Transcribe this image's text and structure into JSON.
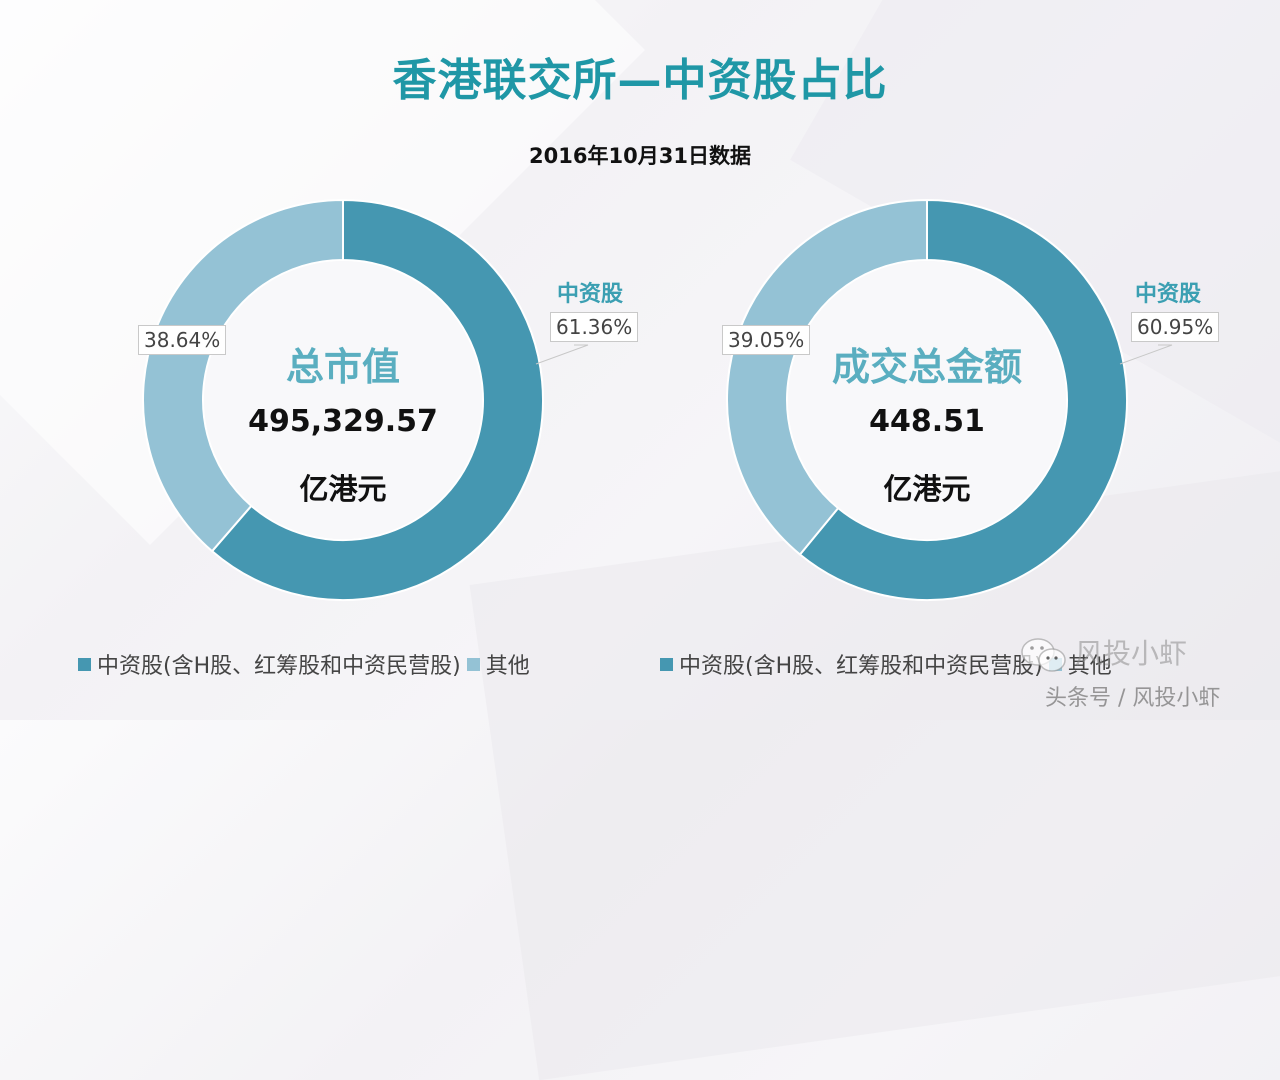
{
  "title": "香港联交所—中资股占比",
  "subtitle": "2016年10月31日数据",
  "colors": {
    "title": "#1f97a6",
    "primary_segment": "#4597b1",
    "secondary_segment": "#94c2d5",
    "center_title": "#5aaec0"
  },
  "charts": [
    {
      "center_title": "总市值",
      "center_value": "495,329.57",
      "center_unit": "亿港元",
      "category_label": "中资股",
      "primary_pct_label": "61.36%",
      "secondary_pct_label": "38.64%"
    },
    {
      "center_title": "成交总金额",
      "center_value": "448.51",
      "center_unit": "亿港元",
      "category_label": "中资股",
      "primary_pct_label": "60.95%",
      "secondary_pct_label": "39.05%"
    }
  ],
  "legends": [
    {
      "items": [
        "中资股(含H股、红筹股和中资民营股)",
        "其他"
      ]
    },
    {
      "items": [
        "中资股(含H股、红筹股和中资民营股)",
        "其他"
      ]
    }
  ],
  "watermark": {
    "line1": "风投小虾",
    "line2": "头条号 / 风投小虾"
  },
  "chart_data": [
    {
      "type": "pie",
      "variant": "donut",
      "title": "总市值",
      "subtitle": "495,329.57 亿港元",
      "categories": [
        "中资股(含H股、红筹股和中资民营股)",
        "其他"
      ],
      "values": [
        61.36,
        38.64
      ],
      "unit": "%",
      "legend_position": "bottom"
    },
    {
      "type": "pie",
      "variant": "donut",
      "title": "成交总金额",
      "subtitle": "448.51 亿港元",
      "categories": [
        "中资股(含H股、红筹股和中资民营股)",
        "其他"
      ],
      "values": [
        60.95,
        39.05
      ],
      "unit": "%",
      "legend_position": "bottom"
    }
  ]
}
